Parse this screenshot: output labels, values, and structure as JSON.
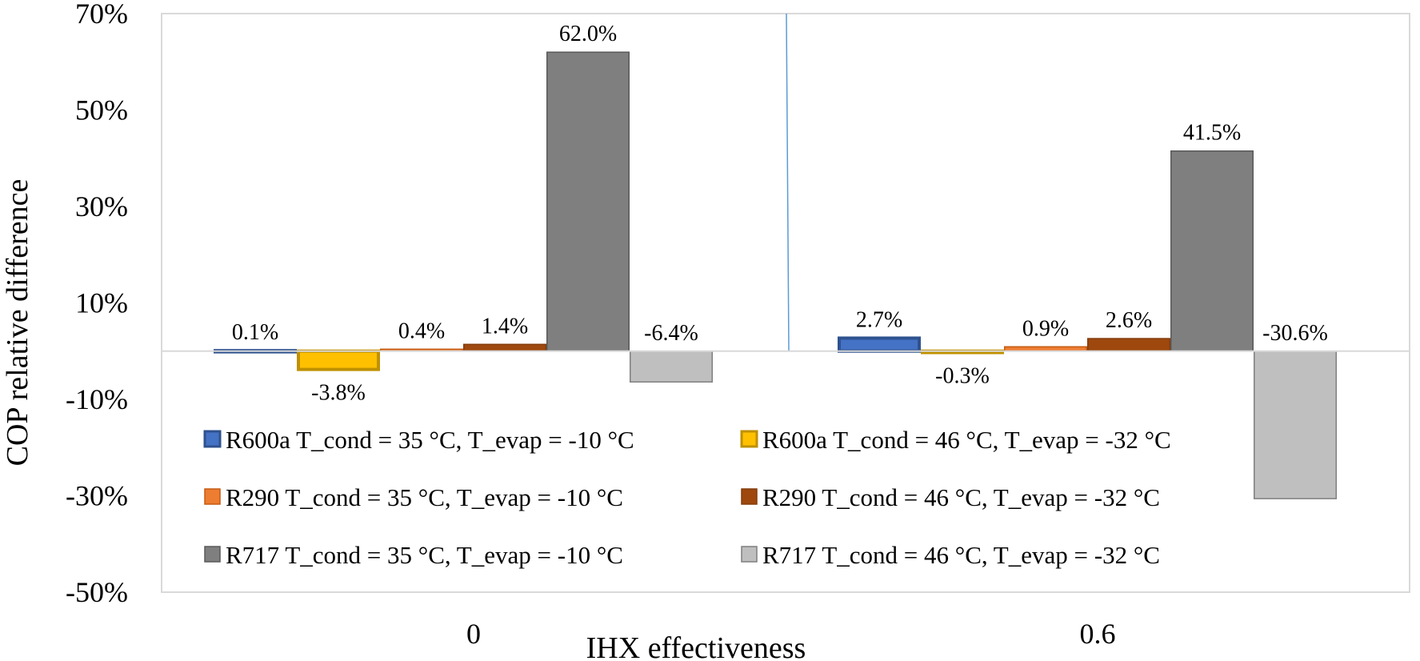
{
  "chart_data": {
    "type": "bar",
    "xlabel": "IHX effectiveness",
    "ylabel": "COP relative difference",
    "categories": [
      "0",
      "0.6"
    ],
    "ylim": [
      -50,
      70
    ],
    "yticks": [
      70,
      50,
      30,
      10,
      -10,
      -30,
      -50
    ],
    "ytick_labels": [
      "70%",
      "50%",
      "30%",
      "10%",
      "-10%",
      "-30%",
      "-50%"
    ],
    "grid": false,
    "legend_position": "inside-bottom-left",
    "series": [
      {
        "name": "R600a T_cond = 35 °C, T_evap = -10 °C",
        "values": [
          0.1,
          2.7
        ],
        "labels": [
          "0.1%",
          "2.7%"
        ],
        "fill": "#4472C4",
        "stroke": "#2F528F"
      },
      {
        "name": "R600a T_cond = 46 °C, T_evap = -32 °C",
        "values": [
          -3.8,
          -0.3
        ],
        "labels": [
          "-3.8%",
          "-0.3%"
        ],
        "fill": "#FFC000",
        "stroke": "#BF9000"
      },
      {
        "name": "R290 T_cond = 35 °C, T_evap = -10 °C",
        "values": [
          0.4,
          0.9
        ],
        "labels": [
          "0.4%",
          "0.9%"
        ],
        "fill": "#ED7D31",
        "stroke": "#C55A11"
      },
      {
        "name": "R290 T_cond = 46 °C, T_evap = -32 °C",
        "values": [
          1.4,
          2.6
        ],
        "labels": [
          "1.4%",
          "2.6%"
        ],
        "fill": "#9E480E",
        "stroke": "#843C0C"
      },
      {
        "name": "R717 T_cond = 35 °C, T_evap = -10 °C",
        "values": [
          62.0,
          41.5
        ],
        "labels": [
          "62.0%",
          "41.5%"
        ],
        "fill": "#7F7F7F",
        "stroke": "#595959"
      },
      {
        "name": "R717 T_cond = 46 °C, T_evap = -32 °C",
        "values": [
          -6.4,
          -30.6
        ],
        "labels": [
          "-6.4%",
          "-30.6%"
        ],
        "fill": "#BFBFBF",
        "stroke": "#7F7F7F"
      }
    ]
  }
}
